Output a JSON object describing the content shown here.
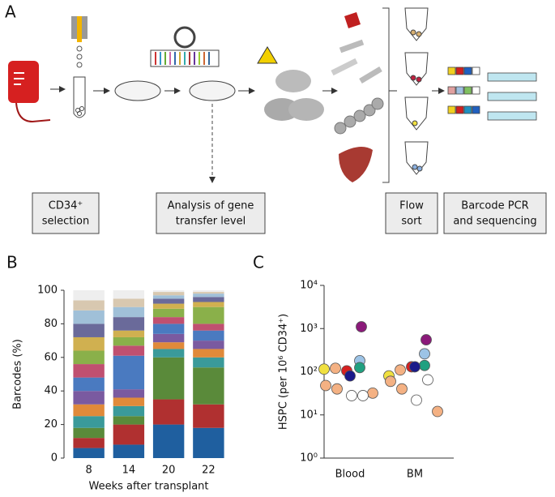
{
  "schematic": {
    "panel": "A",
    "boxes": [
      [
        "CD34⁺",
        "selection"
      ],
      [
        "Analysis of gene",
        "transfer level"
      ],
      [
        "Flow",
        "sort"
      ],
      [
        "Barcode PCR",
        "and sequencing"
      ]
    ]
  },
  "chart_data": [
    {
      "type": "stacked_bar",
      "panel": "B",
      "ylabel": "Barcodes (%)",
      "xlabel": "Weeks after transplant",
      "categories": [
        "8",
        "14",
        "20",
        "22"
      ],
      "ylim": [
        0,
        100
      ],
      "yticks": [
        0,
        20,
        40,
        60,
        80,
        100
      ],
      "series": [
        {
          "color": "#1f5f9f",
          "values": [
            6,
            8,
            20,
            18
          ]
        },
        {
          "color": "#b03030",
          "values": [
            6,
            12,
            15,
            14
          ]
        },
        {
          "color": "#5a8a3a",
          "values": [
            6,
            5,
            25,
            22
          ]
        },
        {
          "color": "#3a9a9a",
          "values": [
            7,
            6,
            5,
            6
          ]
        },
        {
          "color": "#e08a3a",
          "values": [
            7,
            5,
            4,
            5
          ]
        },
        {
          "color": "#7a5aa0",
          "values": [
            8,
            5,
            5,
            5
          ]
        },
        {
          "color": "#4a7ac0",
          "values": [
            8,
            20,
            6,
            6
          ]
        },
        {
          "color": "#c05070",
          "values": [
            8,
            6,
            4,
            4
          ]
        },
        {
          "color": "#8ab04a",
          "values": [
            8,
            5,
            5,
            10
          ]
        },
        {
          "color": "#d0b050",
          "values": [
            8,
            4,
            3,
            3
          ]
        },
        {
          "color": "#6a6a9a",
          "values": [
            8,
            8,
            3,
            3
          ]
        },
        {
          "color": "#a0c0d8",
          "values": [
            8,
            6,
            2,
            2
          ]
        },
        {
          "color": "#d8c8b0",
          "values": [
            6,
            5,
            2,
            1
          ]
        },
        {
          "color": "#eeeeee",
          "values": [
            6,
            5,
            1,
            1
          ]
        }
      ]
    },
    {
      "type": "scatter",
      "panel": "C",
      "ylabel": "HSPC (per 10⁶ CD34⁺)",
      "log": true,
      "categories": [
        "Blood",
        "BM"
      ],
      "ylim": [
        1,
        10000
      ],
      "yticks": [
        {
          "value": 1,
          "label": "10⁰"
        },
        {
          "value": 10,
          "label": "10¹"
        },
        {
          "value": 100,
          "label": "10²"
        },
        {
          "value": 1000,
          "label": "10³"
        },
        {
          "value": 10000,
          "label": "10⁴"
        }
      ],
      "series": [
        {
          "color": "#8b1a7a",
          "values": [
            1100,
            550
          ]
        },
        {
          "color": "#9cc3e6",
          "values": [
            180,
            260
          ]
        },
        {
          "color": "#f0e040",
          "values": [
            115,
            80
          ]
        },
        {
          "color": "#d62020",
          "values": [
            105,
            130
          ]
        },
        {
          "color": "#20a080",
          "values": [
            125,
            140
          ]
        },
        {
          "color": "#1a1a8a",
          "values": [
            80,
            130
          ]
        },
        {
          "color": "#f4b183",
          "values": [
            120,
            110
          ]
        },
        {
          "color": "#f4b183",
          "values": [
            48,
            60
          ]
        },
        {
          "color": "#f4b183",
          "values": [
            40,
            40
          ]
        },
        {
          "color": "#f4b183",
          "values": [
            32,
            12
          ]
        },
        {
          "color": "#ffffff",
          "values": [
            28,
            22
          ]
        },
        {
          "color": "#ffffff",
          "values": [
            28,
            65
          ]
        }
      ]
    }
  ]
}
